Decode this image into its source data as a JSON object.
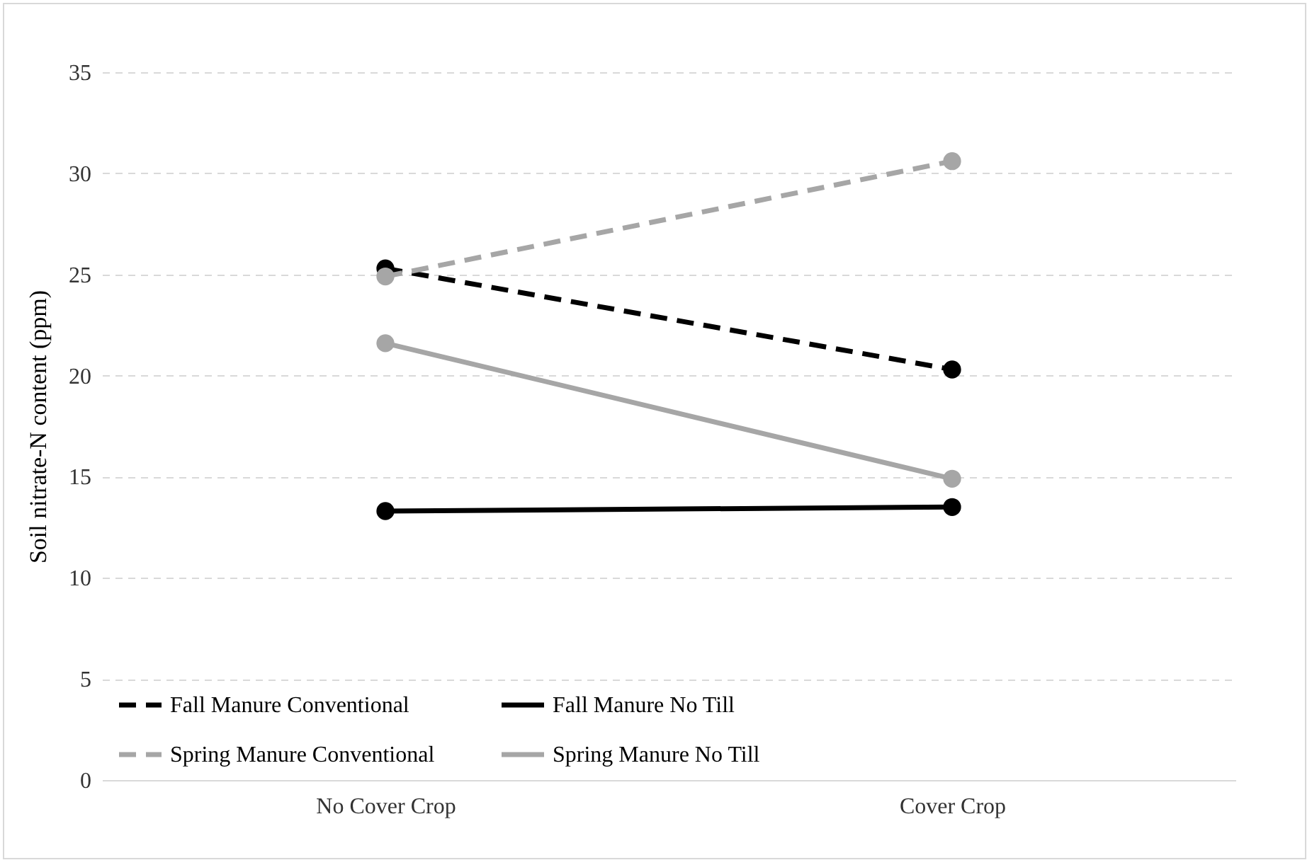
{
  "chart_data": {
    "type": "line",
    "ylabel": "Soil nitrate-N content (ppm)",
    "categories": [
      "No Cover Crop",
      "Cover Crop"
    ],
    "ylim": [
      0,
      35
    ],
    "yticks": [
      0,
      5,
      10,
      15,
      20,
      25,
      30,
      35
    ],
    "grid": "y",
    "legend": "bottom left",
    "marker": "circle",
    "series": [
      {
        "name": "Fall Manure Conventional",
        "color": "#000000",
        "line_style": "dashed",
        "values": [
          25.3,
          20.3
        ]
      },
      {
        "name": "Fall Manure No Till",
        "color": "#000000",
        "line_style": "solid",
        "values": [
          13.3,
          13.5
        ]
      },
      {
        "name": "Spring Manure Conventional",
        "color": "#a6a6a6",
        "line_style": "dashed",
        "values": [
          24.9,
          30.6
        ]
      },
      {
        "name": "Spring Manure No Till",
        "color": "#a6a6a6",
        "line_style": "solid",
        "values": [
          21.6,
          14.9
        ]
      }
    ]
  }
}
